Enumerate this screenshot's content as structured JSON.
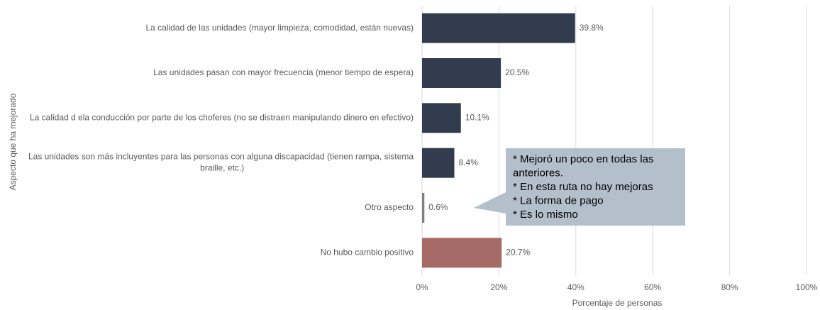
{
  "chart_data": {
    "type": "bar",
    "orientation": "horizontal",
    "xlabel": "Porcentaje de personas",
    "ylabel": "Aspecto que ha mejorado",
    "categories": [
      "La calidad de las unidades (mayor limpieza, comodidad, están nuevas)",
      "Las unidades pasan con mayor frecuencia (menor tiempo de espera)",
      "La calidad d ela conducción por parte de los choferes (no se distraen manipulando dinero en efectivo)",
      "Las unidades son más incluyentes para las personas con alguna discapacidad (tienen rampa, sistema braille, etc.)",
      "Otro aspecto",
      "No hubo cambio positivo"
    ],
    "values": [
      39.8,
      20.5,
      10.1,
      8.4,
      0.6,
      20.7
    ],
    "value_labels": [
      "39.8%",
      "20.5%",
      "10.1%",
      "8.4%",
      "0.6%",
      "20.7%"
    ],
    "colors": [
      "#323c4f",
      "#323c4f",
      "#323c4f",
      "#323c4f",
      "#7f7f7f",
      "#a56a66"
    ],
    "xlim": [
      0,
      100
    ],
    "xticks": [
      {
        "value": 0,
        "label": "0%"
      },
      {
        "value": 20,
        "label": "20%"
      },
      {
        "value": 40,
        "label": "40%"
      },
      {
        "value": 60,
        "label": "60%"
      },
      {
        "value": 80,
        "label": "80%"
      },
      {
        "value": 100,
        "label": "100%"
      }
    ],
    "grid": true,
    "annotation": {
      "category_index": 4,
      "lines": [
        "* Mejoró un poco en todas las",
        "anteriores.",
        "* En esta ruta no hay mejoras",
        "* La forma de pago",
        "* Es lo mismo"
      ]
    }
  }
}
